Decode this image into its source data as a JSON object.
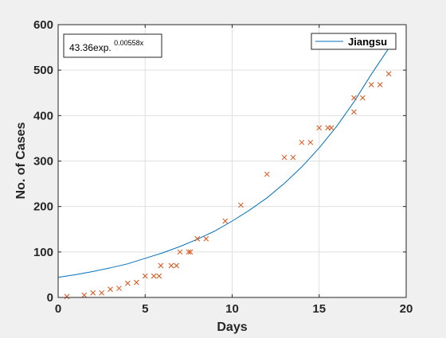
{
  "chart_data": {
    "type": "scatter",
    "xlabel": "Days",
    "ylabel": "No. of Cases",
    "xlim": [
      0,
      20
    ],
    "ylim": [
      0,
      600
    ],
    "xticks": [
      0,
      5,
      10,
      15,
      20
    ],
    "yticks": [
      0,
      100,
      200,
      300,
      400,
      500,
      600
    ],
    "grid": true,
    "legend_location": "top-right",
    "annotation": {
      "base": "43.36exp.",
      "exponent": "0.00558x"
    },
    "series": [
      {
        "name": "Jiangsu",
        "kind": "line",
        "color": "#0072BD",
        "x": [
          0,
          1,
          2,
          3,
          4,
          5,
          6,
          7,
          8,
          9,
          10,
          11,
          12,
          13,
          14,
          15,
          16,
          17,
          18,
          19
        ],
        "y": [
          44,
          50,
          57,
          65,
          74,
          86,
          98,
          112,
          128,
          146,
          168,
          192,
          219,
          251,
          287,
          329,
          376,
          430,
          491,
          548
        ]
      },
      {
        "kind": "scatter",
        "marker": "x",
        "color": "#D95319",
        "x": [
          0.5,
          1.5,
          2,
          2.5,
          3,
          3.5,
          4,
          4.5,
          5,
          5.5,
          5.8,
          5.9,
          6.5,
          6.8,
          7,
          7.5,
          7.6,
          8,
          8.5,
          9.6,
          10.5,
          12,
          13,
          13.5,
          14,
          14.5,
          15,
          15.5,
          15.7,
          17,
          17,
          17.5,
          18,
          18.5,
          19
        ],
        "y": [
          2,
          5,
          10,
          10,
          18,
          20,
          31,
          33,
          47,
          47,
          47,
          70,
          70,
          70,
          100,
          100,
          100,
          129,
          129,
          168,
          203,
          271,
          308,
          308,
          341,
          341,
          373,
          373,
          373,
          408,
          439,
          439,
          468,
          468,
          492
        ]
      }
    ]
  }
}
